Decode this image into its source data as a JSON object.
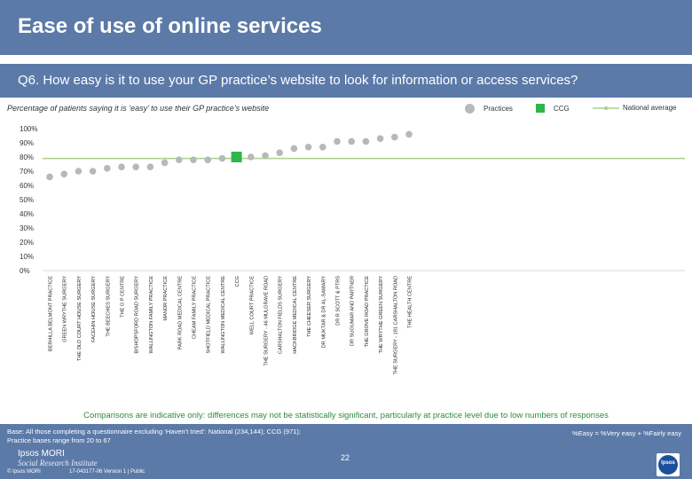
{
  "header": {
    "title": "Ease of use of online services",
    "question": "Q6. How easy is it to use your GP practice’s website to look for information or access services?",
    "subtitle": "Percentage of patients saying it is ‘easy’ to use their GP practice’s website"
  },
  "legend": {
    "practices": "Practices",
    "ccg": "CCG",
    "national": "National average"
  },
  "colors": {
    "header_bg": "#5b7aa8",
    "practice_marker": "#b8b8b8",
    "ccg_marker": "#2eb64a",
    "national_line": "#a8d08d",
    "note_text": "#2e8b3e"
  },
  "chart_data": {
    "type": "scatter",
    "title": "Percentage of patients saying it is ‘easy’ to use their GP practice’s website",
    "y_ticks": [
      "0%",
      "10%",
      "20%",
      "30%",
      "40%",
      "50%",
      "60%",
      "70%",
      "80%",
      "90%",
      "100%"
    ],
    "ylim": [
      0,
      100
    ],
    "national_average": 79,
    "categories": [
      "BERHILLA BELMONT PRACTICE",
      "GREEN WRYTHE SURGERY",
      "THE OLD COURT HOUSE SURGERY",
      "FACEHIN HOUSE SURGERY",
      "THE BEECHES SURGERY",
      "THE G P CENTRE",
      "BISHOPSFORD ROAD SURGERY",
      "WALLINGTON FAMILY PRACTICE",
      "MANOR PRACTICE",
      "PARK ROAD MEDICAL CENTRE",
      "CHEAM FAMILY PRACTICE",
      "SHOTFIELD MEDICAL PRACTICE",
      "WALLINGTON MEDICAL CENTRE",
      "CCG",
      "WELL COURT PRACTICE",
      "THE SURGERY - 46 MULGRAVE ROAD",
      "CARSHALTON FIELDS SURGERY",
      "HACKBRIDGE MEDICAL CENTRE",
      "THE CHEESER SURGERY",
      "DR MUKTAR & DR AL-SAMARY",
      "DR R SCOTT & PTRS",
      "DR SUGUMAR AND PARTNER",
      "THE GROVE ROAD PRACTICE",
      "THE WRYTHE GREEN SURGERY",
      "THE SURGERY - 181 CARSHALTON ROAD",
      "THE HEALTH CENTRE"
    ],
    "values": [
      66,
      68,
      70,
      70,
      72,
      73,
      73,
      73,
      76,
      78,
      78,
      78,
      79,
      80,
      80,
      81,
      83,
      86,
      87,
      87,
      91,
      91,
      91,
      93,
      94,
      96
    ],
    "ccg_index": 13
  },
  "notes": {
    "comparison": "Comparisons are indicative only: differences may not be statistically significant, particularly at practice level due to low numbers of responses",
    "base_line1": "Base: All those completing a questionnaire excluding ‘Haven’t tried’: National (234,144); CCG (971);",
    "base_line2": "Practice bases range from 20 to 67",
    "formula": "%Easy = %Very easy + %Fairly easy",
    "page_number": "22",
    "logo_line1": "Ipsos MORI",
    "logo_line2": "Social Research Institute",
    "copyright": "© Ipsos MORI",
    "version": "17-043177-06 Version 1 | Public",
    "ipsos_badge": "Ipsos"
  }
}
